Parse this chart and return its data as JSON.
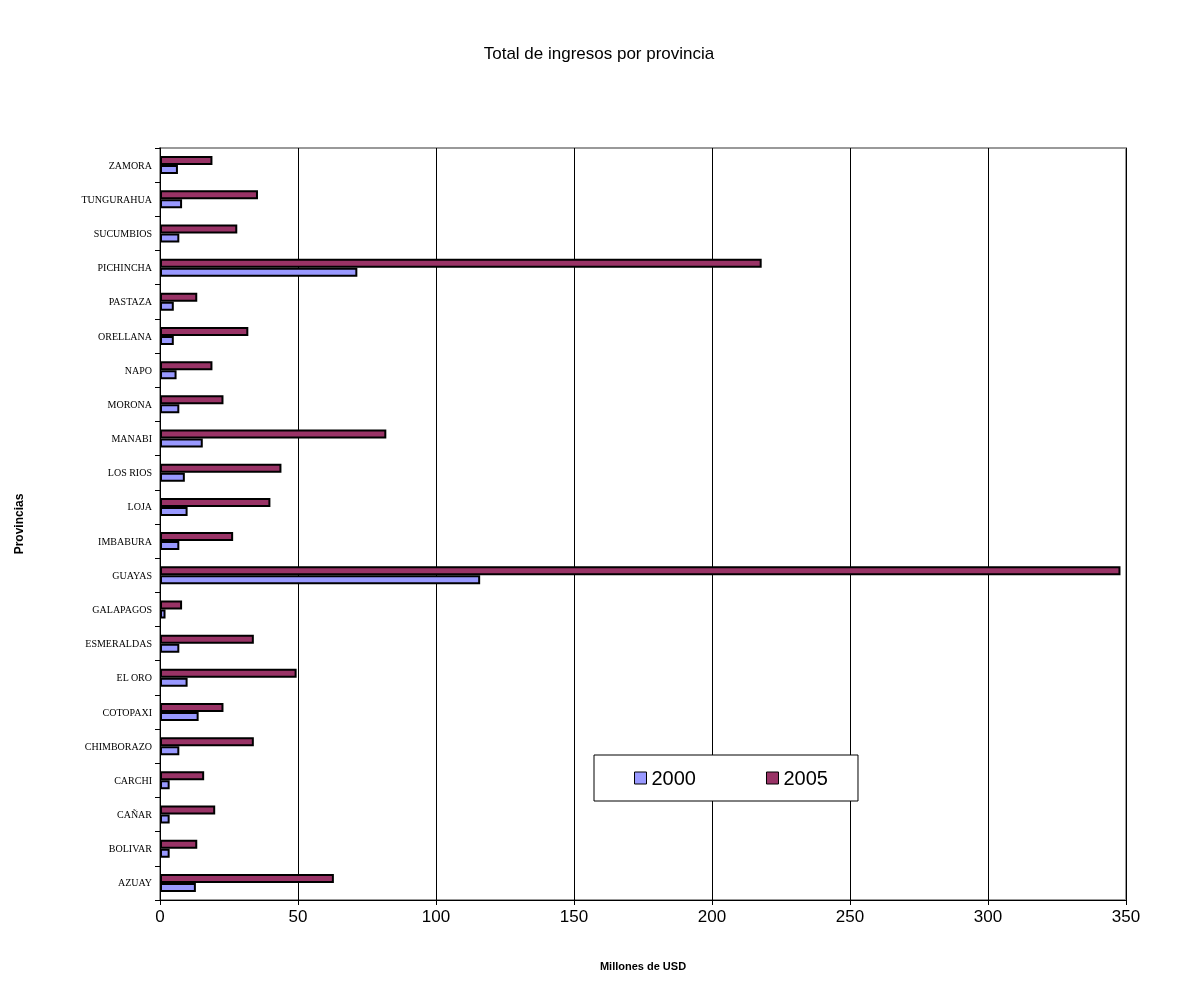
{
  "chart_data": {
    "type": "bar",
    "orientation": "horizontal",
    "title": "Total de ingresos por provincia",
    "xlabel": "Millones de USD",
    "ylabel": "Provincias",
    "categories": [
      "ZAMORA",
      "TUNGURAHUA",
      "SUCUMBIOS",
      "PICHINCHA",
      "PASTAZA",
      "ORELLANA",
      "NAPO",
      "MORONA",
      "MANABI",
      "LOS RIOS",
      "LOJA",
      "IMBABURA",
      "GUAYAS",
      "GALAPAGOS",
      "ESMERALDAS",
      "EL ORO",
      "COTOPAXI",
      "CHIMBORAZO",
      "CARCHI",
      "CAÑAR",
      "BOLIVAR",
      "AZUAY"
    ],
    "series": [
      {
        "name": "2000",
        "color": "#9999ff",
        "values": [
          6.5,
          8,
          7,
          71.5,
          5,
          5,
          6,
          7,
          15.5,
          9,
          10,
          7,
          116,
          2,
          7,
          10,
          14,
          7,
          3.5,
          3.5,
          3.5,
          13
        ]
      },
      {
        "name": "2005",
        "color": "#993366",
        "values": [
          19,
          35.5,
          28,
          218,
          13.5,
          32,
          19,
          23,
          82,
          44,
          40,
          26.5,
          348,
          8,
          34,
          49.5,
          23,
          34,
          16,
          20,
          13.5,
          63
        ]
      }
    ],
    "xlim": [
      0,
      350
    ],
    "xticks": [
      0,
      50,
      100,
      150,
      200,
      250,
      300,
      350
    ],
    "grid": "x",
    "legend": "bottom right"
  }
}
